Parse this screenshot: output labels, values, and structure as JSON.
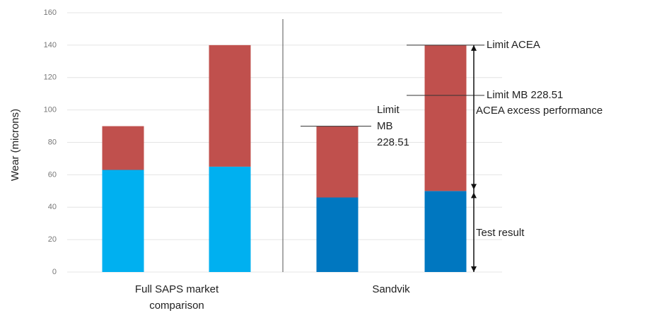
{
  "chart_data": {
    "type": "stacked_bar",
    "y_label": "Wear (microns)",
    "categories": [
      null,
      null,
      null,
      null
    ],
    "groups": [
      "Full SAPS market comparison",
      "Sandvik"
    ],
    "series": [
      {
        "color": [
          "#00b0f0",
          "#00b0f0",
          "#0077c0",
          "#0077c0"
        ],
        "values": [
          63,
          65,
          46,
          50
        ]
      },
      {
        "color": [
          "#c0504d",
          "#c0504d",
          "#c0504d",
          "#c0504d"
        ],
        "values": [
          27,
          75,
          44,
          90
        ]
      }
    ],
    "ylim": [
      0,
      160
    ],
    "yticks": [
      0,
      20,
      40,
      60,
      80,
      100,
      120,
      140,
      160
    ],
    "grid": true,
    "annotations": [
      {
        "text": "Limit ACEA",
        "y": 140
      },
      {
        "text": "Limit MB 228.51",
        "y": 109
      },
      {
        "text": "Limit MB 228.51",
        "y": 90
      },
      {
        "text": "ACEA excess performance"
      },
      {
        "text": "Test result"
      }
    ]
  }
}
